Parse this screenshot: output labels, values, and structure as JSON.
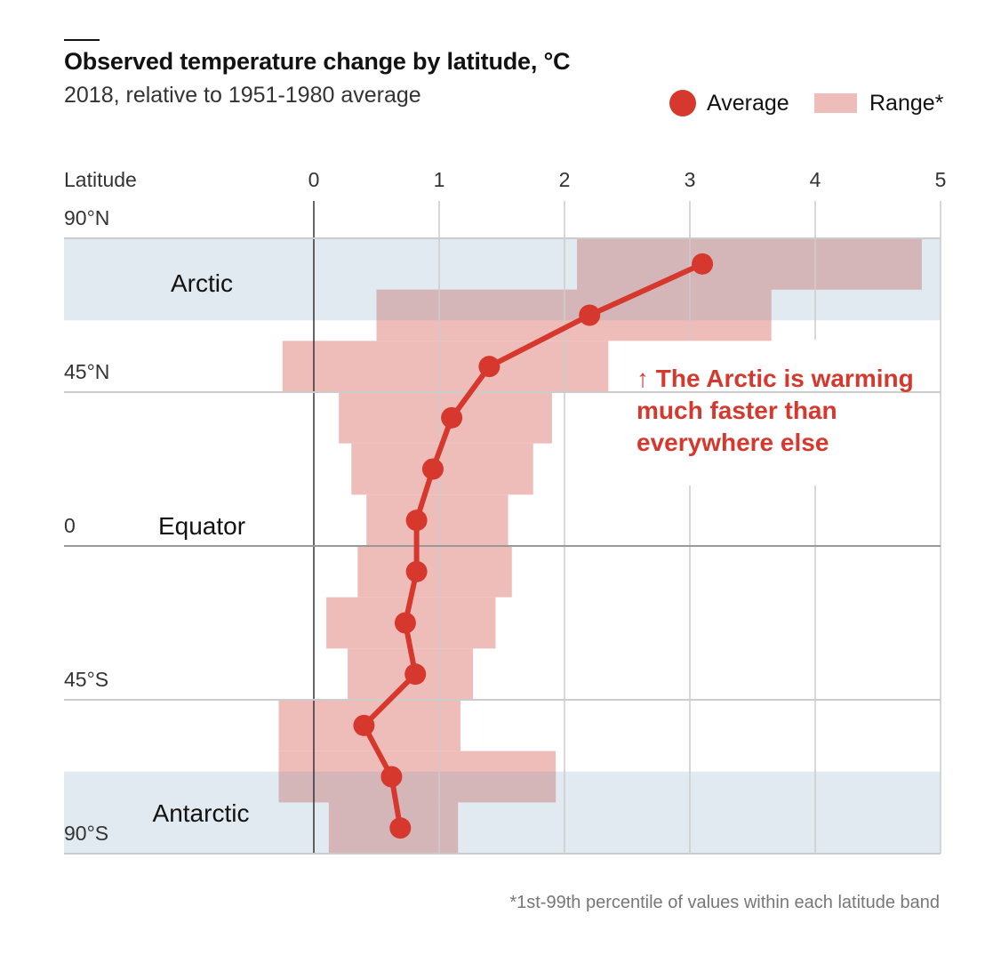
{
  "header": {
    "title": "Observed temperature change by latitude, °C",
    "subtitle": "2018, relative to 1951-1980 average"
  },
  "legend": {
    "average_label": "Average",
    "range_label": "Range*"
  },
  "annotation": {
    "text": "↑ The Arctic is warming\nmuch faster than\neverywhere else"
  },
  "footnote": "*1st-99th percentile of values within each latitude band",
  "colors": {
    "average": "#d7382d",
    "range": "#efbdb9",
    "polar_band": "#e1eaf0",
    "polar_overlap": "#d4b5b8",
    "gridline": "#cccccc",
    "zero_line": "#333333"
  },
  "chart_data": {
    "type": "line",
    "title": "Observed temperature change by latitude, °C",
    "subtitle": "2018, relative to 1951-1980 average",
    "xlabel": "",
    "ylabel": "Latitude",
    "x_ticks": [
      0,
      1,
      2,
      3,
      4,
      5
    ],
    "xlim": [
      0,
      5
    ],
    "ylim": [
      -90,
      90
    ],
    "y_ticks": [
      {
        "lat": 90,
        "label": "90°N"
      },
      {
        "lat": 45,
        "label": "45°N"
      },
      {
        "lat": 0,
        "label": "0"
      },
      {
        "lat": -45,
        "label": "45°S"
      },
      {
        "lat": -90,
        "label": "90°S"
      }
    ],
    "regions": [
      {
        "label": "Arctic",
        "lat_top": 90,
        "lat_bottom": 66,
        "label_lat": 77
      },
      {
        "label": "Equator",
        "lat_top": null,
        "lat_bottom": null,
        "label_lat": 6
      },
      {
        "label": "Antarctic",
        "lat_top": -66,
        "lat_bottom": -90,
        "label_lat": -78
      }
    ],
    "grid": true,
    "legend_position": "top-right",
    "series": [
      {
        "name": "Average",
        "kind": "line-with-markers",
        "points": [
          {
            "lat": 82.5,
            "value": 3.1
          },
          {
            "lat": 67.5,
            "value": 2.2
          },
          {
            "lat": 52.5,
            "value": 1.4
          },
          {
            "lat": 37.5,
            "value": 1.1
          },
          {
            "lat": 22.5,
            "value": 0.95
          },
          {
            "lat": 7.5,
            "value": 0.82
          },
          {
            "lat": -7.5,
            "value": 0.82
          },
          {
            "lat": -22.5,
            "value": 0.73
          },
          {
            "lat": -37.5,
            "value": 0.81
          },
          {
            "lat": -52.5,
            "value": 0.4
          },
          {
            "lat": -67.5,
            "value": 0.62
          },
          {
            "lat": -82.5,
            "value": 0.69
          }
        ]
      },
      {
        "name": "Range*",
        "kind": "bands",
        "bands": [
          {
            "lat_top": 90,
            "lat_bottom": 75,
            "min": 2.1,
            "max": 4.85
          },
          {
            "lat_top": 75,
            "lat_bottom": 60,
            "min": 0.5,
            "max": 3.65
          },
          {
            "lat_top": 60,
            "lat_bottom": 45,
            "min": -0.25,
            "max": 2.35
          },
          {
            "lat_top": 45,
            "lat_bottom": 30,
            "min": 0.2,
            "max": 1.9
          },
          {
            "lat_top": 30,
            "lat_bottom": 15,
            "min": 0.3,
            "max": 1.75
          },
          {
            "lat_top": 15,
            "lat_bottom": 0,
            "min": 0.42,
            "max": 1.55
          },
          {
            "lat_top": 0,
            "lat_bottom": -15,
            "min": 0.35,
            "max": 1.58
          },
          {
            "lat_top": -15,
            "lat_bottom": -30,
            "min": 0.1,
            "max": 1.45
          },
          {
            "lat_top": -30,
            "lat_bottom": -45,
            "min": 0.27,
            "max": 1.27
          },
          {
            "lat_top": -45,
            "lat_bottom": -60,
            "min": -0.28,
            "max": 1.17
          },
          {
            "lat_top": -60,
            "lat_bottom": -75,
            "min": -0.28,
            "max": 1.93
          },
          {
            "lat_top": -75,
            "lat_bottom": -90,
            "min": 0.12,
            "max": 1.15
          }
        ]
      }
    ],
    "axis_title_text": "Latitude"
  }
}
